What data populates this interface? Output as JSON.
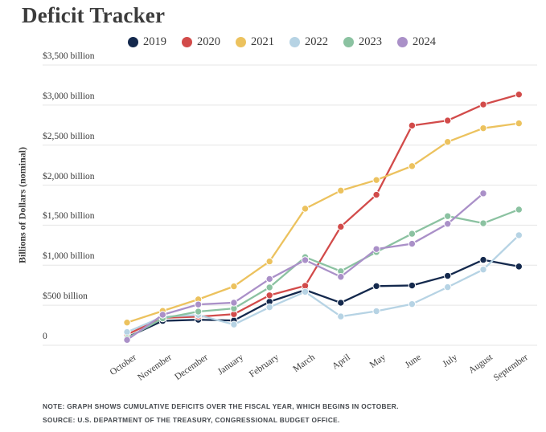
{
  "page": {
    "note": "NOTE: GRAPH SHOWS CUMULATIVE DEFICITS OVER THE FISCAL YEAR, WHICH BEGINS IN OCTOBER.",
    "source": "SOURCE: U.S. DEPARTMENT OF THE TREASURY, CONGRESSIONAL BUDGET OFFICE."
  },
  "chart_data": {
    "type": "line",
    "title": "Deficit Tracker",
    "ylabel": "Billions of Dollars (nominal)",
    "xlabel": "",
    "ylim": [
      0,
      3500
    ],
    "grid": true,
    "legend_position": "top",
    "grid_color": "#e5e5e5",
    "categories": [
      "October",
      "November",
      "December",
      "January",
      "February",
      "March",
      "April",
      "May",
      "June",
      "July",
      "August",
      "September"
    ],
    "ytick_labels": [
      "0",
      "$500 billion",
      "$1,000 billion",
      "$1,500 billion",
      "$2,000 billion",
      "$2,500 billion",
      "$3,000 billion",
      "$3,500 billion"
    ],
    "series": [
      {
        "name": "2019",
        "color": "#14294d",
        "values": [
          100,
          305,
          319,
          310,
          544,
          691,
          531,
          739,
          747,
          867,
          1067,
          984
        ]
      },
      {
        "name": "2020",
        "color": "#d24b4a",
        "values": [
          134,
          343,
          357,
          389,
          624,
          743,
          1481,
          1880,
          2744,
          2807,
          3007,
          3132
        ]
      },
      {
        "name": "2021",
        "color": "#ecc25e",
        "values": [
          284,
          429,
          573,
          736,
          1047,
          1706,
          1932,
          2064,
          2238,
          2540,
          2711,
          2772
        ]
      },
      {
        "name": "2022",
        "color": "#b6d3e4",
        "values": [
          165,
          356,
          378,
          259,
          475,
          668,
          360,
          426,
          515,
          726,
          946,
          1375
        ]
      },
      {
        "name": "2023",
        "color": "#8bc2a1",
        "values": [
          88,
          336,
          421,
          460,
          723,
          1101,
          925,
          1165,
          1393,
          1613,
          1524,
          1695
        ]
      },
      {
        "name": "2024",
        "color": "#aa90c8",
        "values": [
          67,
          381,
          510,
          532,
          828,
          1064,
          855,
          1202,
          1268,
          1517,
          1897,
          null
        ]
      }
    ]
  }
}
